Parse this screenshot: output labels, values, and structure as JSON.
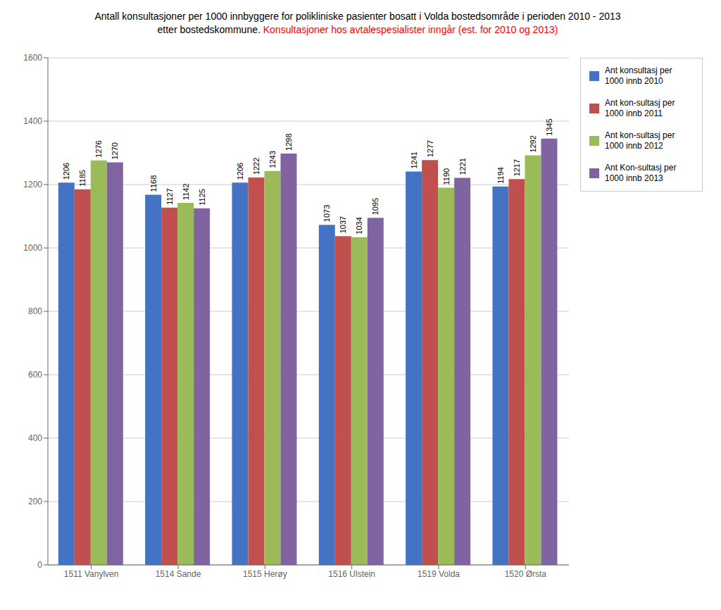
{
  "chart_data": {
    "type": "bar",
    "title": "Antall konsultasjoner per 1000 innbyggere for polikliniske pasienter bosatt i Volda bostedsområde i perioden 2010 - 2013",
    "subtitle": [
      {
        "text": "etter bostedskommune. ",
        "color": "black"
      },
      {
        "text": "Konsultasjoner hos avtalespesialister inngår (est. for 2010 og 2013)",
        "color": "red"
      }
    ],
    "categories": [
      "1511 Vanylven",
      "1514 Sande",
      "1515 Herøy",
      "1516 Ulstein",
      "1519 Volda",
      "1520 Ørsta"
    ],
    "series": [
      {
        "name": "Ant konsultasj per\n1000 innb 2010",
        "color": "#4472C4",
        "values": [
          1206,
          1168,
          1206,
          1073,
          1241,
          1194
        ]
      },
      {
        "name": "Ant kon-sultasj per\n1000 innb 2011",
        "color": "#C0504D",
        "values": [
          1185,
          1127,
          1222,
          1037,
          1277,
          1217
        ]
      },
      {
        "name": "Ant kon-sultasj per\n1000 innb 2012",
        "color": "#9BBB59",
        "values": [
          1276,
          1142,
          1243,
          1034,
          1190,
          1292
        ]
      },
      {
        "name": "Ant Kon-sultasj per\n1000 innb 2013",
        "color": "#8064A2",
        "values": [
          1270,
          1125,
          1298,
          1095,
          1221,
          1345
        ]
      }
    ],
    "ylim": [
      0,
      1600
    ],
    "yticks": [
      0,
      200,
      400,
      600,
      800,
      1000,
      1200,
      1400,
      1600
    ],
    "grid": true,
    "legend": "right",
    "data_labels": true
  }
}
